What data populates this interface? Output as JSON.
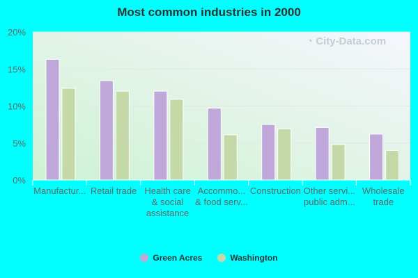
{
  "chart_data": {
    "type": "bar",
    "title": "Most common industries in 2000",
    "categories": [
      [
        "Manufactur..."
      ],
      [
        "Retail trade"
      ],
      [
        "Health care",
        "& social",
        "assistance"
      ],
      [
        "Accommo...",
        "& food serv..."
      ],
      [
        "Construction"
      ],
      [
        "Other servi...",
        "public adm..."
      ],
      [
        "Wholesale",
        "trade"
      ]
    ],
    "series": [
      {
        "name": "Green Acres",
        "color": "#bfa8d9",
        "values": [
          16.3,
          13.4,
          12.0,
          9.7,
          7.5,
          7.1,
          6.2
        ]
      },
      {
        "name": "Washington",
        "color": "#c5d9a8",
        "values": [
          12.4,
          12.0,
          10.9,
          6.1,
          6.9,
          4.8,
          4.0
        ]
      }
    ],
    "ylim": [
      0,
      20
    ],
    "yticks": [
      "0%",
      "5%",
      "10%",
      "15%",
      "20%"
    ],
    "grid": true,
    "legend": "bottom",
    "watermark": "City-Data.com"
  }
}
